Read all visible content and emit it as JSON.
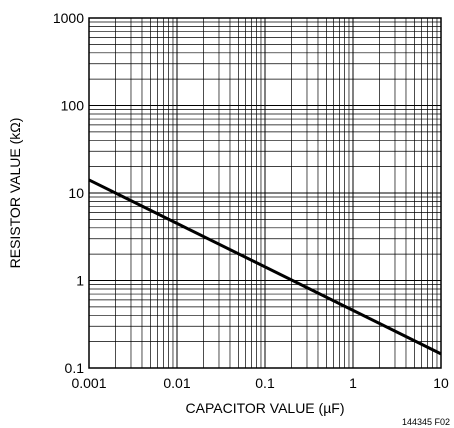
{
  "chart_data": {
    "type": "line",
    "title": "",
    "xlabel": "CAPACITOR VALUE (µF)",
    "ylabel": "RESISTOR VALUE (kΩ)",
    "xscale": "log",
    "yscale": "log",
    "xlim": [
      0.001,
      10
    ],
    "ylim": [
      0.1,
      1000
    ],
    "grid": true,
    "x_ticks": [
      "0.001",
      "0.01",
      "0.1",
      "1",
      "10"
    ],
    "y_ticks": [
      "0.1",
      "1",
      "10",
      "100",
      "1000"
    ],
    "series": [
      {
        "x": [
          0.001,
          10
        ],
        "y": [
          14.1,
          0.145
        ]
      }
    ],
    "annotation": "144345 F02",
    "colors": {
      "line": "#000000",
      "grid": "#000000"
    }
  }
}
